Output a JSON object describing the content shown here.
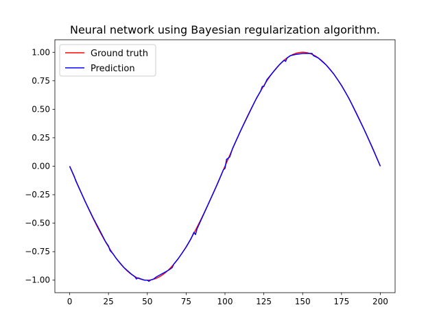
{
  "chart_data": {
    "type": "line",
    "title": "Neural network using Bayesian regularization algorithm.",
    "xlabel": "",
    "ylabel": "",
    "xlim": [
      -9.5,
      209.5
    ],
    "ylim": [
      -1.11,
      1.11
    ],
    "grid": false,
    "legend_position": "top-left",
    "x_ticks": [
      0,
      25,
      50,
      75,
      100,
      125,
      150,
      175,
      200
    ],
    "y_ticks": [
      -1.0,
      -0.75,
      -0.5,
      -0.25,
      0.0,
      0.25,
      0.5,
      0.75,
      1.0
    ],
    "y_tick_labels": [
      "−1.00",
      "−0.75",
      "−0.50",
      "−0.25",
      "0.00",
      "0.25",
      "0.50",
      "0.75",
      "1.00"
    ],
    "x_tick_labels": [
      "0",
      "25",
      "50",
      "75",
      "100",
      "125",
      "150",
      "175",
      "200"
    ],
    "series": [
      {
        "name": "Ground truth",
        "color": "#ff0000",
        "function": "sine",
        "x_range": [
          0,
          200
        ],
        "period": 200
      },
      {
        "name": "Prediction",
        "color": "#0000ff",
        "points": [
          [
            0,
            0.0
          ],
          [
            1,
            -0.03
          ],
          [
            2,
            -0.06
          ],
          [
            3,
            -0.09
          ],
          [
            4,
            -0.13
          ],
          [
            6,
            -0.19
          ],
          [
            10,
            -0.31
          ],
          [
            15,
            -0.45
          ],
          [
            20,
            -0.58
          ],
          [
            23,
            -0.66
          ],
          [
            24,
            -0.68
          ],
          [
            25,
            -0.7
          ],
          [
            26,
            -0.74
          ],
          [
            28,
            -0.77
          ],
          [
            30,
            -0.81
          ],
          [
            35,
            -0.89
          ],
          [
            40,
            -0.95
          ],
          [
            42,
            -0.97
          ],
          [
            43,
            -0.99
          ],
          [
            44,
            -0.98
          ],
          [
            46,
            -0.99
          ],
          [
            48,
            -1.0
          ],
          [
            50,
            -1.0
          ],
          [
            51,
            -1.01
          ],
          [
            52,
            -1.0
          ],
          [
            54,
            -0.99
          ],
          [
            56,
            -0.97
          ],
          [
            60,
            -0.94
          ],
          [
            64,
            -0.91
          ],
          [
            66,
            -0.89
          ],
          [
            67,
            -0.86
          ],
          [
            70,
            -0.81
          ],
          [
            75,
            -0.71
          ],
          [
            78,
            -0.64
          ],
          [
            80,
            -0.58
          ],
          [
            81,
            -0.6
          ],
          [
            82,
            -0.55
          ],
          [
            85,
            -0.46
          ],
          [
            90,
            -0.31
          ],
          [
            95,
            -0.16
          ],
          [
            99,
            -0.03
          ],
          [
            100,
            -0.02
          ],
          [
            101,
            0.06
          ],
          [
            102,
            0.07
          ],
          [
            103,
            0.08
          ],
          [
            105,
            0.16
          ],
          [
            110,
            0.31
          ],
          [
            115,
            0.45
          ],
          [
            120,
            0.59
          ],
          [
            123,
            0.66
          ],
          [
            124,
            0.7
          ],
          [
            125,
            0.7
          ],
          [
            127,
            0.76
          ],
          [
            130,
            0.81
          ],
          [
            135,
            0.89
          ],
          [
            138,
            0.93
          ],
          [
            139,
            0.92
          ],
          [
            140,
            0.95
          ],
          [
            142,
            0.97
          ],
          [
            145,
            0.98
          ],
          [
            150,
            0.99
          ],
          [
            155,
            0.99
          ],
          [
            156,
            0.99
          ],
          [
            157,
            0.97
          ],
          [
            160,
            0.95
          ],
          [
            165,
            0.89
          ],
          [
            170,
            0.81
          ],
          [
            175,
            0.71
          ],
          [
            180,
            0.59
          ],
          [
            185,
            0.45
          ],
          [
            190,
            0.31
          ],
          [
            195,
            0.16
          ],
          [
            200,
            0.0
          ]
        ]
      }
    ]
  }
}
